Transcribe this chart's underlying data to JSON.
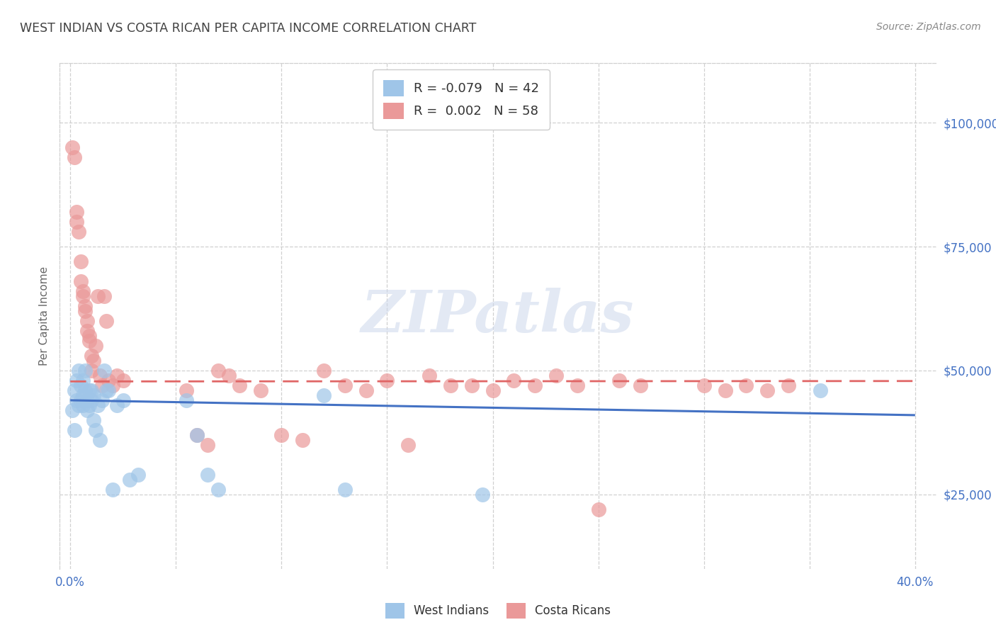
{
  "title": "WEST INDIAN VS COSTA RICAN PER CAPITA INCOME CORRELATION CHART",
  "source": "Source: ZipAtlas.com",
  "ylabel": "Per Capita Income",
  "yticks": [
    25000,
    50000,
    75000,
    100000
  ],
  "ytick_labels": [
    "$25,000",
    "$50,000",
    "$75,000",
    "$100,000"
  ],
  "xticks": [
    0.0,
    0.05,
    0.1,
    0.15,
    0.2,
    0.25,
    0.3,
    0.35,
    0.4
  ],
  "xtick_labels_show": [
    "0.0%",
    "",
    "",
    "",
    "",
    "",
    "",
    "",
    "40.0%"
  ],
  "xlim": [
    -0.005,
    0.41
  ],
  "ylim": [
    10000,
    112000
  ],
  "watermark": "ZIPatlas",
  "legend_label1": "R = -0.079   N = 42",
  "legend_label2": "R =  0.002   N = 58",
  "legend_group1": "West Indians",
  "legend_group2": "Costa Ricans",
  "blue_color": "#9fc5e8",
  "pink_color": "#ea9999",
  "blue_line_color": "#4472c4",
  "pink_line_color": "#e06666",
  "title_color": "#434343",
  "axis_label_color": "#4472c4",
  "source_color": "#888888",
  "grid_color": "#d0d0d0",
  "blue_slope": -7500,
  "blue_intercept": 44000,
  "pink_slope": 200,
  "pink_intercept": 47800,
  "blue_x": [
    0.001,
    0.002,
    0.002,
    0.003,
    0.003,
    0.004,
    0.004,
    0.005,
    0.005,
    0.006,
    0.006,
    0.006,
    0.007,
    0.007,
    0.008,
    0.008,
    0.009,
    0.009,
    0.01,
    0.01,
    0.011,
    0.011,
    0.012,
    0.013,
    0.014,
    0.015,
    0.016,
    0.017,
    0.018,
    0.02,
    0.022,
    0.025,
    0.055,
    0.06,
    0.065,
    0.07,
    0.12,
    0.13,
    0.195,
    0.355,
    0.028,
    0.032
  ],
  "blue_y": [
    42000,
    38000,
    46000,
    44000,
    48000,
    43000,
    50000,
    44000,
    47000,
    45000,
    48000,
    43000,
    46000,
    50000,
    42000,
    44000,
    46000,
    43000,
    44000,
    46000,
    40000,
    45000,
    38000,
    43000,
    36000,
    44000,
    50000,
    46000,
    46000,
    26000,
    43000,
    44000,
    44000,
    37000,
    29000,
    26000,
    45000,
    26000,
    25000,
    46000,
    28000,
    29000
  ],
  "pink_x": [
    0.001,
    0.002,
    0.003,
    0.003,
    0.004,
    0.005,
    0.005,
    0.006,
    0.006,
    0.007,
    0.007,
    0.008,
    0.008,
    0.009,
    0.009,
    0.01,
    0.01,
    0.011,
    0.012,
    0.013,
    0.014,
    0.015,
    0.016,
    0.017,
    0.018,
    0.02,
    0.022,
    0.025,
    0.055,
    0.06,
    0.065,
    0.07,
    0.075,
    0.08,
    0.09,
    0.1,
    0.11,
    0.12,
    0.13,
    0.14,
    0.15,
    0.16,
    0.17,
    0.18,
    0.19,
    0.2,
    0.21,
    0.22,
    0.23,
    0.24,
    0.25,
    0.26,
    0.27,
    0.3,
    0.31,
    0.32,
    0.33,
    0.34
  ],
  "pink_y": [
    95000,
    93000,
    82000,
    80000,
    78000,
    72000,
    68000,
    66000,
    65000,
    63000,
    62000,
    60000,
    58000,
    57000,
    56000,
    53000,
    50000,
    52000,
    55000,
    65000,
    49000,
    47000,
    65000,
    60000,
    48000,
    47000,
    49000,
    48000,
    46000,
    37000,
    35000,
    50000,
    49000,
    47000,
    46000,
    37000,
    36000,
    50000,
    47000,
    46000,
    48000,
    35000,
    49000,
    47000,
    47000,
    46000,
    48000,
    47000,
    49000,
    47000,
    22000,
    48000,
    47000,
    47000,
    46000,
    47000,
    46000,
    47000
  ]
}
